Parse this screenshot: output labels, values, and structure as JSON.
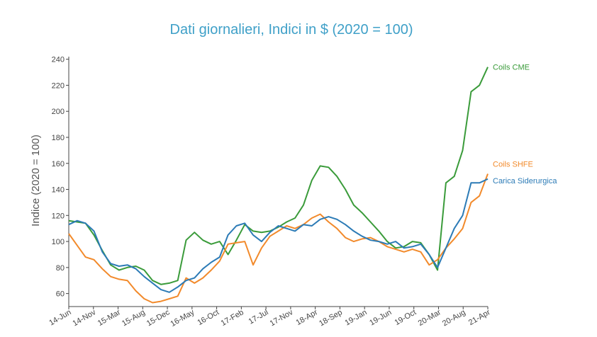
{
  "chart_data": {
    "type": "line",
    "title": "Dati giornalieri, Indici in $ (2020 = 100)",
    "ylabel": "Indice (2020 = 100)",
    "xlabel": "",
    "ylim": [
      50,
      242
    ],
    "yticks": [
      60,
      80,
      100,
      120,
      140,
      160,
      180,
      200,
      220,
      240
    ],
    "x_ticks": [
      "14-Jun",
      "14-Nov",
      "15-Mar",
      "15-Aug",
      "15-Dec",
      "16-May",
      "16-Oct",
      "17-Feb",
      "17-Jul",
      "17-Nov",
      "18-Apr",
      "18-Sep",
      "19-Jan",
      "19-Jun",
      "19-Oct",
      "20-Mar",
      "20-Aug",
      "21-Apr"
    ],
    "grid": false,
    "legend": "inline labels at line ends (right)",
    "series": [
      {
        "name": "Coils CME",
        "color": "#3a9b3a",
        "values": [
          116,
          115,
          114,
          105,
          93,
          82,
          78,
          80,
          81,
          78,
          70,
          67,
          68,
          70,
          101,
          107,
          101,
          98,
          100,
          90,
          101,
          113,
          108,
          107,
          108,
          111,
          115,
          118,
          128,
          147,
          158,
          157,
          150,
          140,
          128,
          122,
          115,
          108,
          100,
          95,
          96,
          100,
          99,
          90,
          78,
          145,
          150,
          170,
          215,
          220,
          234
        ]
      },
      {
        "name": "Coils SHFE",
        "color": "#f28a2b",
        "values": [
          106,
          97,
          88,
          86,
          79,
          73,
          71,
          70,
          62,
          56,
          53,
          54,
          56,
          58,
          72,
          68,
          72,
          78,
          85,
          98,
          99,
          100,
          82,
          95,
          104,
          108,
          112,
          110,
          113,
          118,
          121,
          115,
          110,
          103,
          100,
          102,
          103,
          100,
          96,
          94,
          92,
          94,
          92,
          82,
          86,
          95,
          102,
          110,
          130,
          135,
          152
        ]
      },
      {
        "name": "Carica Siderurgica",
        "color": "#2c7bb6",
        "values": [
          113,
          116,
          114,
          108,
          92,
          83,
          81,
          82,
          79,
          73,
          68,
          63,
          61,
          65,
          70,
          72,
          79,
          84,
          88,
          105,
          112,
          114,
          105,
          100,
          107,
          112,
          110,
          108,
          113,
          112,
          117,
          119,
          117,
          113,
          108,
          104,
          101,
          100,
          98,
          100,
          95,
          96,
          98,
          90,
          80,
          95,
          110,
          120,
          145,
          145,
          148
        ]
      }
    ]
  }
}
